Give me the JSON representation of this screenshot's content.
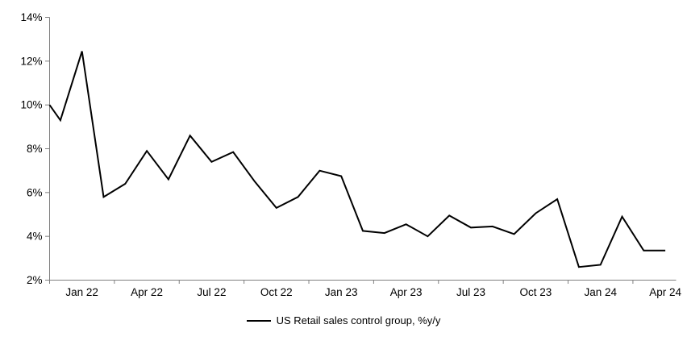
{
  "chart_data": {
    "type": "line",
    "title": "",
    "legend_label": "US Retail sales control group, %y/y",
    "legend_position": "bottom-center",
    "grid": "off",
    "line_color": "#000000",
    "axis_color": "#808080",
    "text_color": "#000000",
    "ylim": [
      2,
      14
    ],
    "y_tick_labels": [
      "2%",
      "4%",
      "6%",
      "8%",
      "10%",
      "12%",
      "14%"
    ],
    "x_tick_labels": [
      "Jan 22",
      "Apr 22",
      "Jul 22",
      "Oct 22",
      "Jan 23",
      "Apr 23",
      "Jul 23",
      "Oct 23",
      "Jan 24",
      "Apr 24"
    ],
    "axis_entry_value": 10.0,
    "months": [
      "Jan 22",
      "Feb 22",
      "Mar 22",
      "Apr 22",
      "May 22",
      "Jun 22",
      "Jul 22",
      "Aug 22",
      "Sep 22",
      "Oct 22",
      "Nov 22",
      "Dec 22",
      "Jan 23",
      "Feb 23",
      "Mar 23",
      "Apr 23",
      "May 23",
      "Jun 23",
      "Jul 23",
      "Aug 23",
      "Sep 23",
      "Oct 23",
      "Nov 23",
      "Dec 23",
      "Jan 24",
      "Feb 24",
      "Mar 24",
      "Apr 24",
      "May 24"
    ],
    "values": [
      9.3,
      12.45,
      5.8,
      6.4,
      7.9,
      6.6,
      8.6,
      7.4,
      7.85,
      6.5,
      5.3,
      5.8,
      7.0,
      6.75,
      4.25,
      4.15,
      4.55,
      4.0,
      4.95,
      4.4,
      4.45,
      4.1,
      5.05,
      5.7,
      2.6,
      2.7,
      4.9,
      3.35,
      3.35
    ]
  }
}
